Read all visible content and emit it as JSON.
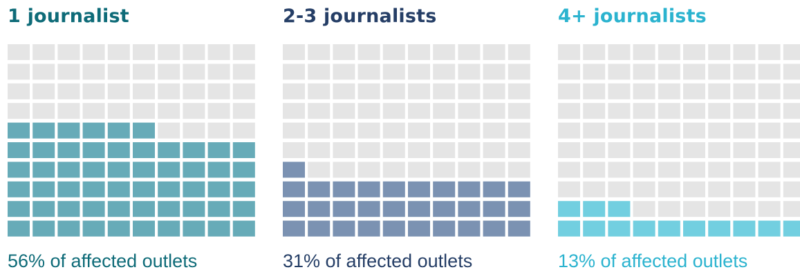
{
  "chart_data": [
    {
      "type": "waffle",
      "title": "1 journalist",
      "caption": "56% of affected outlets",
      "value": 56,
      "total": 100,
      "grid": {
        "columns": 10,
        "rows": 10
      },
      "fill_color": "#67abb8",
      "empty_color": "#e5e5e5",
      "title_color": "#0e6b78",
      "caption_color": "#0e6b78"
    },
    {
      "type": "waffle",
      "title": "2-3 journalists",
      "caption": "31% of affected outlets",
      "value": 31,
      "total": 100,
      "grid": {
        "columns": 10,
        "rows": 10
      },
      "fill_color": "#7b92b2",
      "empty_color": "#e5e5e5",
      "title_color": "#253e66",
      "caption_color": "#253e66"
    },
    {
      "type": "waffle",
      "title": "4+ journalists",
      "caption": "13% of affected outlets",
      "value": 13,
      "total": 100,
      "grid": {
        "columns": 10,
        "rows": 10
      },
      "fill_color": "#72cfe0",
      "empty_color": "#e5e5e5",
      "title_color": "#2bb3cf",
      "caption_color": "#2bb3cf"
    }
  ]
}
